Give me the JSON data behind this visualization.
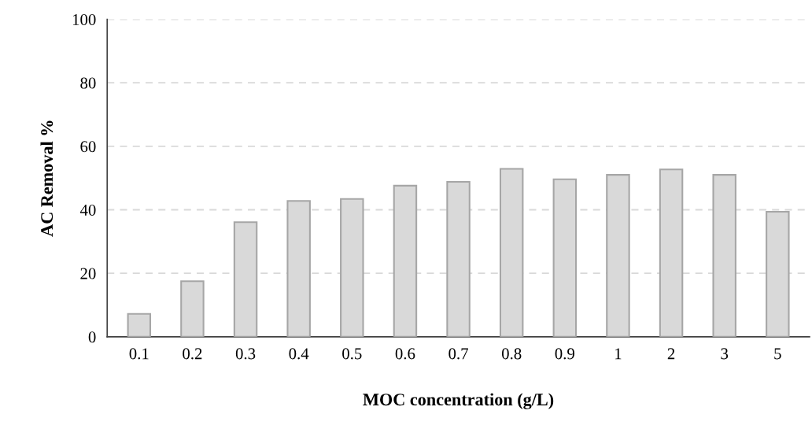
{
  "chart_data": {
    "type": "bar",
    "xlabel": "MOC concentration (g/L)",
    "ylabel": "AC Removal %",
    "categories": [
      "0.1",
      "0.2",
      "0.3",
      "0.4",
      "0.5",
      "0.6",
      "0.7",
      "0.8",
      "0.9",
      "1",
      "2",
      "3",
      "5"
    ],
    "values": [
      7.2,
      17.5,
      36.1,
      42.8,
      43.4,
      47.6,
      48.8,
      52.9,
      49.6,
      51.0,
      52.7,
      51.0,
      39.4
    ],
    "color": "#d9d9d9",
    "ylim": [
      0,
      100
    ],
    "yticks": [
      0,
      20,
      40,
      60,
      80,
      100
    ],
    "grid": "y",
    "legend": false
  }
}
